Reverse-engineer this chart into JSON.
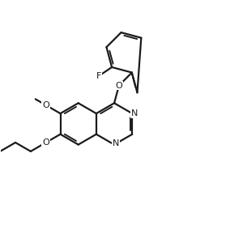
{
  "bg": "white",
  "lc": "#1a1a1a",
  "lw": 1.6,
  "fs": 8.0,
  "bl": 0.82,
  "bcx": 3.05,
  "bcy": 4.4,
  "xlim": [
    0.0,
    9.0
  ],
  "ylim": [
    0.5,
    9.0
  ]
}
